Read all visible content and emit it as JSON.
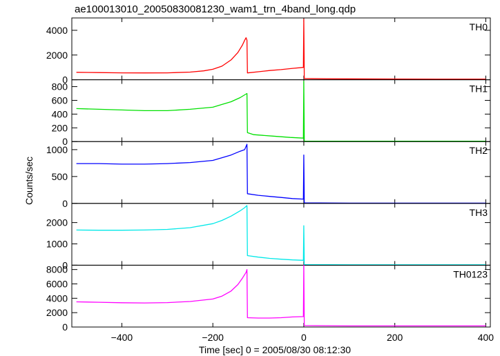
{
  "chart_data": {
    "type": "line",
    "title": "ae100013010_20050830081230_wam1_trn_4band_long.qdp",
    "xlabel": "Time [sec] 0 = 2005/08/30 08:12:30",
    "ylabel": "Counts/sec",
    "xlim": [
      -510,
      410
    ],
    "xticks": [
      -400,
      -200,
      0,
      200,
      400
    ],
    "xtick_labels": [
      "−400",
      "−200",
      "0",
      "200",
      "400"
    ],
    "panels": [
      {
        "name": "TH0",
        "color": "#ff0000",
        "ylim": [
          0,
          5000
        ],
        "yticks": [
          0,
          2000,
          4000
        ],
        "ytick_labels": [
          "0",
          "2000",
          "4000"
        ],
        "x": [
          -500,
          -450,
          -400,
          -350,
          -300,
          -250,
          -220,
          -200,
          -180,
          -160,
          -145,
          -135,
          -130,
          -127,
          -125,
          -124,
          -100,
          -75,
          -50,
          -25,
          -1,
          0,
          1,
          50,
          100,
          200,
          300,
          400
        ],
        "y": [
          600,
          580,
          560,
          550,
          560,
          620,
          720,
          850,
          1100,
          1600,
          2200,
          2800,
          3200,
          3400,
          3200,
          550,
          650,
          750,
          820,
          920,
          1000,
          4900,
          100,
          80,
          70,
          60,
          50,
          50
        ]
      },
      {
        "name": "TH1",
        "color": "#00e000",
        "ylim": [
          0,
          900
        ],
        "yticks": [
          0,
          200,
          400,
          600,
          800
        ],
        "ytick_labels": [
          "0",
          "200",
          "400",
          "600",
          "800"
        ],
        "x": [
          -500,
          -450,
          -400,
          -350,
          -300,
          -250,
          -200,
          -180,
          -160,
          -140,
          -130,
          -125,
          -124,
          -110,
          -90,
          -70,
          -50,
          -30,
          -1,
          0,
          1,
          100,
          200,
          300,
          400
        ],
        "y": [
          480,
          470,
          460,
          450,
          450,
          470,
          500,
          540,
          580,
          640,
          680,
          700,
          130,
          100,
          90,
          80,
          70,
          60,
          50,
          880,
          5,
          5,
          5,
          5,
          5
        ]
      },
      {
        "name": "TH2",
        "color": "#0000ff",
        "ylim": [
          0,
          1150
        ],
        "yticks": [
          0,
          500,
          1000
        ],
        "ytick_labels": [
          "0",
          "500",
          "1000"
        ],
        "x": [
          -500,
          -450,
          -400,
          -350,
          -300,
          -250,
          -200,
          -180,
          -160,
          -140,
          -130,
          -125,
          -124,
          -100,
          -75,
          -50,
          -25,
          -1,
          0,
          1,
          100,
          200,
          300,
          400
        ],
        "y": [
          740,
          740,
          730,
          730,
          740,
          760,
          800,
          850,
          900,
          970,
          1000,
          1100,
          180,
          150,
          130,
          110,
          90,
          80,
          900,
          10,
          5,
          5,
          5,
          5
        ]
      },
      {
        "name": "TH3",
        "color": "#00e8e8",
        "ylim": [
          0,
          2900
        ],
        "yticks": [
          0,
          1000,
          2000
        ],
        "ytick_labels": [
          "0",
          "1000",
          "2000"
        ],
        "x": [
          -500,
          -450,
          -400,
          -350,
          -300,
          -250,
          -200,
          -180,
          -160,
          -140,
          -130,
          -125,
          -124,
          -100,
          -75,
          -50,
          -25,
          -1,
          0,
          1,
          100,
          200,
          300,
          400
        ],
        "y": [
          1650,
          1640,
          1640,
          1650,
          1680,
          1760,
          1950,
          2100,
          2300,
          2550,
          2700,
          2800,
          450,
          380,
          320,
          280,
          250,
          230,
          1850,
          30,
          20,
          20,
          20,
          20
        ]
      },
      {
        "name": "TH0123",
        "color": "#ff00ff",
        "ylim": [
          0,
          8600
        ],
        "yticks": [
          0,
          2000,
          4000,
          6000,
          8000
        ],
        "ytick_labels": [
          "0",
          "2000",
          "4000",
          "6000",
          "8000"
        ],
        "x": [
          -500,
          -450,
          -400,
          -350,
          -300,
          -250,
          -200,
          -180,
          -160,
          -145,
          -135,
          -127,
          -125,
          -124,
          -100,
          -75,
          -50,
          -25,
          -1,
          0,
          1,
          100,
          200,
          300,
          400
        ],
        "y": [
          3500,
          3450,
          3380,
          3350,
          3400,
          3550,
          3900,
          4300,
          5000,
          5900,
          6800,
          7600,
          8000,
          1300,
          1250,
          1250,
          1300,
          1400,
          1450,
          8600,
          200,
          150,
          150,
          150,
          150
        ]
      }
    ]
  }
}
